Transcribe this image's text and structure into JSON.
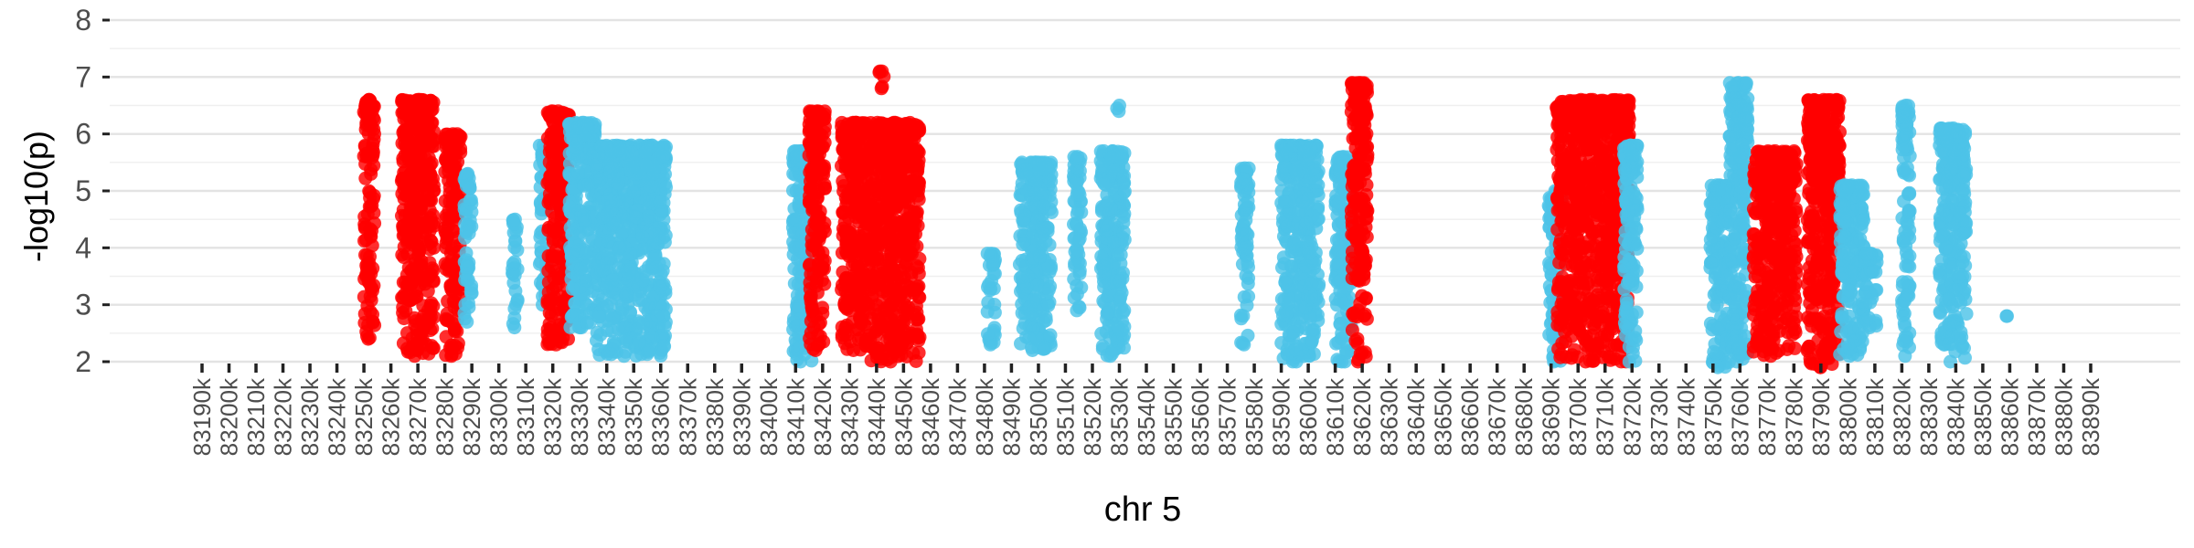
{
  "chart_data": {
    "type": "scatter",
    "title": "",
    "xlabel": "chr 5",
    "ylabel": "-log10(p)",
    "ylim": [
      2,
      8
    ],
    "yticks": [
      "2",
      "3",
      "4",
      "5",
      "6",
      "7",
      "8"
    ],
    "xlim": [
      83190,
      83890
    ],
    "x_unit": "k",
    "xticks": [
      "83190k",
      "83200k",
      "83210k",
      "83220k",
      "83230k",
      "83240k",
      "83250k",
      "83260k",
      "83270k",
      "83280k",
      "83290k",
      "83300k",
      "83310k",
      "83320k",
      "83330k",
      "83340k",
      "83350k",
      "83360k",
      "83370k",
      "83380k",
      "83390k",
      "83400k",
      "83410k",
      "83420k",
      "83430k",
      "83440k",
      "83450k",
      "83460k",
      "83470k",
      "83480k",
      "83490k",
      "83500k",
      "83510k",
      "83520k",
      "83530k",
      "83540k",
      "83550k",
      "83560k",
      "83570k",
      "83580k",
      "83590k",
      "83600k",
      "83610k",
      "83620k",
      "83630k",
      "83640k",
      "83650k",
      "83660k",
      "83670k",
      "83680k",
      "83690k",
      "83700k",
      "83710k",
      "83720k",
      "83730k",
      "83740k",
      "83750k",
      "83760k",
      "83770k",
      "83780k",
      "83790k",
      "83800k",
      "83810k",
      "83820k",
      "83830k",
      "83840k",
      "83850k",
      "83860k",
      "83870k",
      "83880k",
      "83890k"
    ],
    "grid": "horizontal",
    "legend": "none",
    "colors": {
      "red": "#ff0000",
      "blue": "#4dc3e8"
    },
    "clusters": [
      {
        "x": [
          83250,
          83254
        ],
        "y_min": 2.4,
        "y_max": 6.6,
        "color": "red"
      },
      {
        "x": [
          83264,
          83276
        ],
        "y_min": 2.1,
        "y_max": 6.6,
        "color": "red"
      },
      {
        "x": [
          83280,
          83286
        ],
        "y_min": 2.1,
        "y_max": 6.0,
        "color": "red"
      },
      {
        "x": [
          83287,
          83290
        ],
        "y_min": 2.7,
        "y_max": 5.3,
        "color": "blue"
      },
      {
        "x": [
          83305,
          83307
        ],
        "y_min": 2.6,
        "y_max": 4.5,
        "color": "blue"
      },
      {
        "x": [
          83315,
          83318
        ],
        "y_min": 3.0,
        "y_max": 5.8,
        "color": "blue"
      },
      {
        "x": [
          83318,
          83326
        ],
        "y_min": 2.3,
        "y_max": 6.4,
        "color": "red"
      },
      {
        "x": [
          83326,
          83336
        ],
        "y_min": 2.6,
        "y_max": 6.2,
        "color": "blue"
      },
      {
        "x": [
          83336,
          83362
        ],
        "y_min": 2.1,
        "y_max": 5.8,
        "color": "blue"
      },
      {
        "x": [
          83409,
          83416
        ],
        "y_min": 2.0,
        "y_max": 5.7,
        "color": "blue"
      },
      {
        "x": [
          83415,
          83421
        ],
        "y_min": 2.2,
        "y_max": 6.4,
        "color": "red"
      },
      {
        "x": [
          83427,
          83438
        ],
        "y_min": 2.2,
        "y_max": 6.2,
        "color": "red"
      },
      {
        "x": [
          83438,
          83456
        ],
        "y_min": 2.0,
        "y_max": 6.2,
        "color": "red"
      },
      {
        "x": [
          83441,
          83443
        ],
        "y_min": 6.8,
        "y_max": 7.1,
        "color": "red"
      },
      {
        "x": [
          83481,
          83484
        ],
        "y_min": 2.3,
        "y_max": 3.9,
        "color": "blue"
      },
      {
        "x": [
          83493,
          83505
        ],
        "y_min": 2.2,
        "y_max": 5.5,
        "color": "blue"
      },
      {
        "x": [
          83513,
          83516
        ],
        "y_min": 2.9,
        "y_max": 5.6,
        "color": "blue"
      },
      {
        "x": [
          83523,
          83532
        ],
        "y_min": 2.1,
        "y_max": 5.7,
        "color": "blue"
      },
      {
        "x": [
          83529,
          83531
        ],
        "y_min": 6.4,
        "y_max": 6.5,
        "color": "blue"
      },
      {
        "x": [
          83575,
          83578
        ],
        "y_min": 2.3,
        "y_max": 5.4,
        "color": "blue"
      },
      {
        "x": [
          83590,
          83604
        ],
        "y_min": 2.0,
        "y_max": 5.8,
        "color": "blue"
      },
      {
        "x": [
          83610,
          83616
        ],
        "y_min": 2.0,
        "y_max": 5.6,
        "color": "blue"
      },
      {
        "x": [
          83616,
          83622
        ],
        "y_min": 2.0,
        "y_max": 6.9,
        "color": "red"
      },
      {
        "x": [
          83689,
          83694
        ],
        "y_min": 2.0,
        "y_max": 5.0,
        "color": "blue"
      },
      {
        "x": [
          83692,
          83719
        ],
        "y_min": 2.0,
        "y_max": 6.6,
        "color": "red"
      },
      {
        "x": [
          83717,
          83722
        ],
        "y_min": 2.0,
        "y_max": 5.8,
        "color": "blue"
      },
      {
        "x": [
          83749,
          83756
        ],
        "y_min": 1.9,
        "y_max": 5.1,
        "color": "blue"
      },
      {
        "x": [
          83756,
          83763
        ],
        "y_min": 2.0,
        "y_max": 6.9,
        "color": "blue"
      },
      {
        "x": [
          83765,
          83781
        ],
        "y_min": 2.1,
        "y_max": 5.7,
        "color": "red"
      },
      {
        "x": [
          83785,
          83797
        ],
        "y_min": 1.9,
        "y_max": 6.6,
        "color": "red"
      },
      {
        "x": [
          83797,
          83806
        ],
        "y_min": 2.1,
        "y_max": 5.1,
        "color": "blue"
      },
      {
        "x": [
          83806,
          83811
        ],
        "y_min": 2.6,
        "y_max": 3.9,
        "color": "blue"
      },
      {
        "x": [
          83820,
          83823
        ],
        "y_min": 2.1,
        "y_max": 6.5,
        "color": "blue"
      },
      {
        "x": [
          83834,
          83844
        ],
        "y_min": 2.0,
        "y_max": 6.1,
        "color": "blue"
      },
      {
        "x": [
          83858,
          83860
        ],
        "y_min": 2.8,
        "y_max": 2.8,
        "color": "blue"
      }
    ]
  }
}
